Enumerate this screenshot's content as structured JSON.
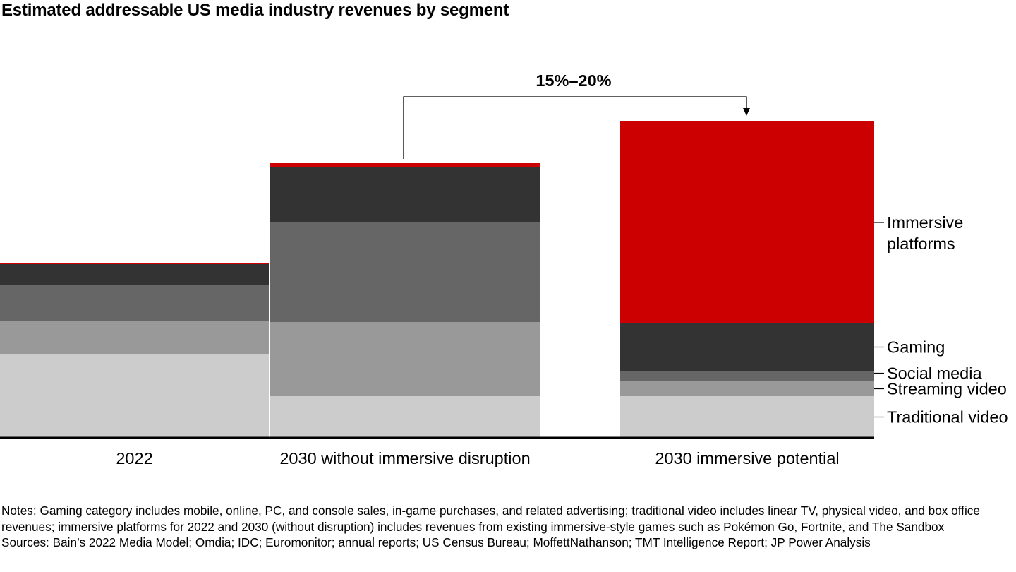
{
  "colors": {
    "traditional_video": "#cccccc",
    "streaming_video": "#999999",
    "social_media": "#666666",
    "gaming": "#333333",
    "immersive_platforms": "#cc0000",
    "baseline": "#000000",
    "leader": "#000000"
  },
  "chart_data": {
    "type": "bar",
    "stacked": true,
    "title": "Estimated addressable US media industry revenues by segment",
    "categories": [
      "2022",
      "2030 without immersive disruption",
      "2030 immersive potential"
    ],
    "series": [
      {
        "name": "Traditional video",
        "values": [
          118,
          59,
          59
        ]
      },
      {
        "name": "Streaming video",
        "values": [
          47,
          105,
          21
        ]
      },
      {
        "name": "Social media",
        "values": [
          52,
          142,
          15
        ]
      },
      {
        "name": "Gaming",
        "values": [
          29,
          77,
          67
        ]
      },
      {
        "name": "Immersive platforms",
        "values": [
          2,
          6,
          286
        ]
      }
    ],
    "ylim": [
      0,
      450
    ],
    "grid": false,
    "legend": "right",
    "annotation": {
      "label": "15%–20%",
      "from": "2030 without immersive disruption",
      "to": "2030 immersive potential"
    }
  },
  "notes": {
    "notes_text": "Notes: Gaming category includes mobile, online, PC, and console sales, in-game purchases, and related advertising; traditional video includes linear TV, physical video, and box office revenues; immersive platforms for 2022 and 2030 (without disruption) includes revenues from existing immersive-style games such as Pokémon Go, Fortnite, and The Sandbox",
    "sources_text": "Sources: Bain’s 2022 Media Model; Omdia; IDC; Euromonitor; annual reports; US Census Bureau; MoffettNathanson; TMT Intelligence Report; JP Power Analysis"
  }
}
